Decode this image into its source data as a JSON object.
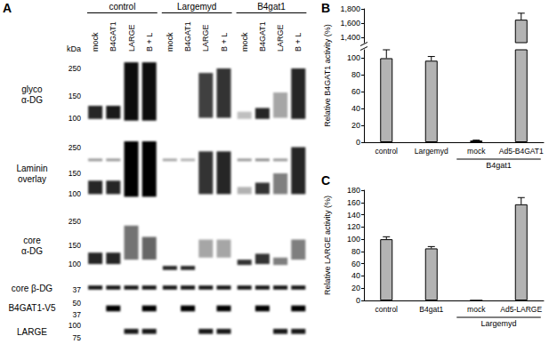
{
  "blot": {
    "title": "A",
    "kda_label": "kDa",
    "groups": [
      {
        "label": "control",
        "lanes": [
          "mock",
          "B4GAT1",
          "LARGE",
          "B + L"
        ]
      },
      {
        "label": "Largemyd",
        "lanes": [
          "mock",
          "B4GAT1",
          "LARGE",
          "B + L"
        ]
      },
      {
        "label": "B4gat1",
        "lanes": [
          "mock",
          "B4GAT1",
          "LARGE",
          "B + L"
        ]
      }
    ],
    "rows": [
      {
        "label": [
          "glyco",
          "α-DG"
        ],
        "range": [
          320,
          75
        ],
        "markers": [
          250,
          150,
          100
        ],
        "bands": [
          [
            [
              125,
              98,
              0.85
            ]
          ],
          [
            [
              125,
              98,
              0.9
            ]
          ],
          [
            [
              280,
              95,
              0.95
            ]
          ],
          [
            [
              280,
              95,
              0.95
            ]
          ],
          [],
          [],
          [
            [
              230,
              100,
              0.75
            ]
          ],
          [
            [
              250,
              100,
              0.8
            ]
          ],
          [
            [
              112,
              98,
              0.25
            ]
          ],
          [
            [
              120,
              98,
              0.85
            ]
          ],
          [
            [
              160,
              100,
              0.35
            ]
          ],
          [
            [
              250,
              98,
              0.85
            ]
          ]
        ]
      },
      {
        "label": [
          "Laminin",
          "overlay"
        ],
        "range": [
          300,
          75
        ],
        "markers": [
          250,
          150,
          100
        ],
        "bands": [
          [
            [
              200,
              190,
              0.4
            ],
            [
              130,
              100,
              0.85
            ]
          ],
          [
            [
              200,
              190,
              0.4
            ],
            [
              130,
              100,
              0.85
            ]
          ],
          [
            [
              280,
              95,
              1
            ]
          ],
          [
            [
              280,
              95,
              1
            ]
          ],
          [
            [
              200,
              190,
              0.35
            ]
          ],
          [
            [
              200,
              190,
              0.3
            ]
          ],
          [
            [
              230,
              100,
              0.8
            ]
          ],
          [
            [
              230,
              100,
              0.85
            ]
          ],
          [
            [
              200,
              190,
              0.4
            ],
            [
              115,
              100,
              0.3
            ]
          ],
          [
            [
              200,
              190,
              0.45
            ],
            [
              125,
              100,
              0.8
            ]
          ],
          [
            [
              200,
              190,
              0.4
            ],
            [
              150,
              100,
              0.5
            ]
          ],
          [
            [
              250,
              100,
              0.85
            ]
          ]
        ]
      },
      {
        "label": [
          "core",
          "α-DG"
        ],
        "range": [
          300,
          75
        ],
        "markers": [
          250,
          150,
          100
        ],
        "bands": [
          [
            [
              128,
              100,
              0.85
            ]
          ],
          [
            [
              128,
              100,
              0.85
            ]
          ],
          [
            [
              230,
              110,
              0.55
            ]
          ],
          [
            [
              180,
              110,
              0.6
            ]
          ],
          [
            [
              96,
              88,
              0.85
            ]
          ],
          [
            [
              96,
              88,
              0.85
            ]
          ],
          [
            [
              170,
              115,
              0.35
            ]
          ],
          [
            [
              170,
              115,
              0.35
            ]
          ],
          [
            [
              110,
              98,
              0.8
            ]
          ],
          [
            [
              125,
              100,
              0.8
            ]
          ],
          [
            [
              115,
              98,
              0.5
            ]
          ],
          [
            [
              170,
              110,
              0.5
            ]
          ]
        ]
      },
      {
        "label": [
          "core β-DG"
        ],
        "range": [
          45,
          33
        ],
        "markers": [
          37
        ],
        "bands": [
          [
            [
              41,
              37,
              0.9
            ]
          ],
          [
            [
              41,
              37,
              0.9
            ]
          ],
          [
            [
              41,
              37,
              0.9
            ]
          ],
          [
            [
              41,
              37,
              0.9
            ]
          ],
          [
            [
              41,
              37,
              0.9
            ]
          ],
          [
            [
              41,
              37,
              0.9
            ]
          ],
          [
            [
              41,
              37,
              0.9
            ]
          ],
          [
            [
              41,
              37,
              0.9
            ]
          ],
          [
            [
              41,
              37,
              0.9
            ]
          ],
          [
            [
              41,
              37,
              0.9
            ]
          ],
          [
            [
              41,
              37,
              0.9
            ]
          ],
          [
            [
              41,
              37,
              0.9
            ]
          ]
        ]
      },
      {
        "label": [
          "B4GAT1-V5"
        ],
        "range": [
          58,
          34
        ],
        "markers": [
          50,
          37
        ],
        "bands": [
          [],
          [
            [
              47,
              40,
              1
            ]
          ],
          [],
          [
            [
              47,
              40,
              1
            ]
          ],
          [],
          [
            [
              47,
              40,
              1
            ]
          ],
          [],
          [
            [
              47,
              40,
              1
            ]
          ],
          [],
          [
            [
              47,
              40,
              1
            ]
          ],
          [],
          [
            [
              47,
              40,
              1
            ]
          ]
        ]
      },
      {
        "label": [
          "LARGE"
        ],
        "range": [
          110,
          68
        ],
        "markers": [
          100,
          75
        ],
        "bands": [
          [],
          [],
          [
            [
              92,
              82,
              0.9
            ]
          ],
          [
            [
              92,
              82,
              0.9
            ]
          ],
          [],
          [],
          [
            [
              92,
              82,
              0.9
            ]
          ],
          [
            [
              92,
              82,
              0.9
            ]
          ],
          [],
          [],
          [
            [
              92,
              82,
              0.9
            ]
          ],
          [
            [
              92,
              82,
              0.9
            ]
          ]
        ]
      }
    ]
  },
  "chart_data": [
    {
      "type": "bar",
      "title": "B",
      "categories": [
        "control",
        "Largemyd",
        "mock",
        "Ad5-B4GAT1"
      ],
      "values": [
        100,
        97,
        2,
        1650
      ],
      "errors": [
        10,
        5,
        0.5,
        90
      ],
      "color": "#b3b3b3",
      "y_label": "Relative B4GAT1 activity (%)",
      "ylim": [
        0,
        1800
      ],
      "ybreak": [
        110,
        1330
      ],
      "yticks": [
        0,
        20,
        40,
        60,
        80,
        100,
        {
          "value": 1400,
          "label": "1,400"
        },
        {
          "value": 1600,
          "label": "1,600"
        },
        {
          "value": 1800,
          "label": "1,800"
        }
      ],
      "grid": false,
      "annotations": [
        {
          "text": "B4gat1",
          "categories": [
            "mock",
            "Ad5-B4GAT1"
          ]
        }
      ]
    },
    {
      "type": "bar",
      "title": "C",
      "categories": [
        "control",
        "B4gat1",
        "mock",
        "Ad5-LARGE"
      ],
      "values": [
        100,
        85,
        0,
        157
      ],
      "errors": [
        4,
        3,
        0,
        11
      ],
      "color": "#b3b3b3",
      "y_label": "Relative LARGE activity (%)",
      "ylim": [
        0,
        180
      ],
      "yticks": [
        0,
        20,
        40,
        60,
        80,
        100,
        120,
        140,
        160,
        180
      ],
      "grid": false,
      "annotations": [
        {
          "text": "Largemyd",
          "categories": [
            "mock",
            "Ad5-LARGE"
          ]
        }
      ]
    }
  ]
}
